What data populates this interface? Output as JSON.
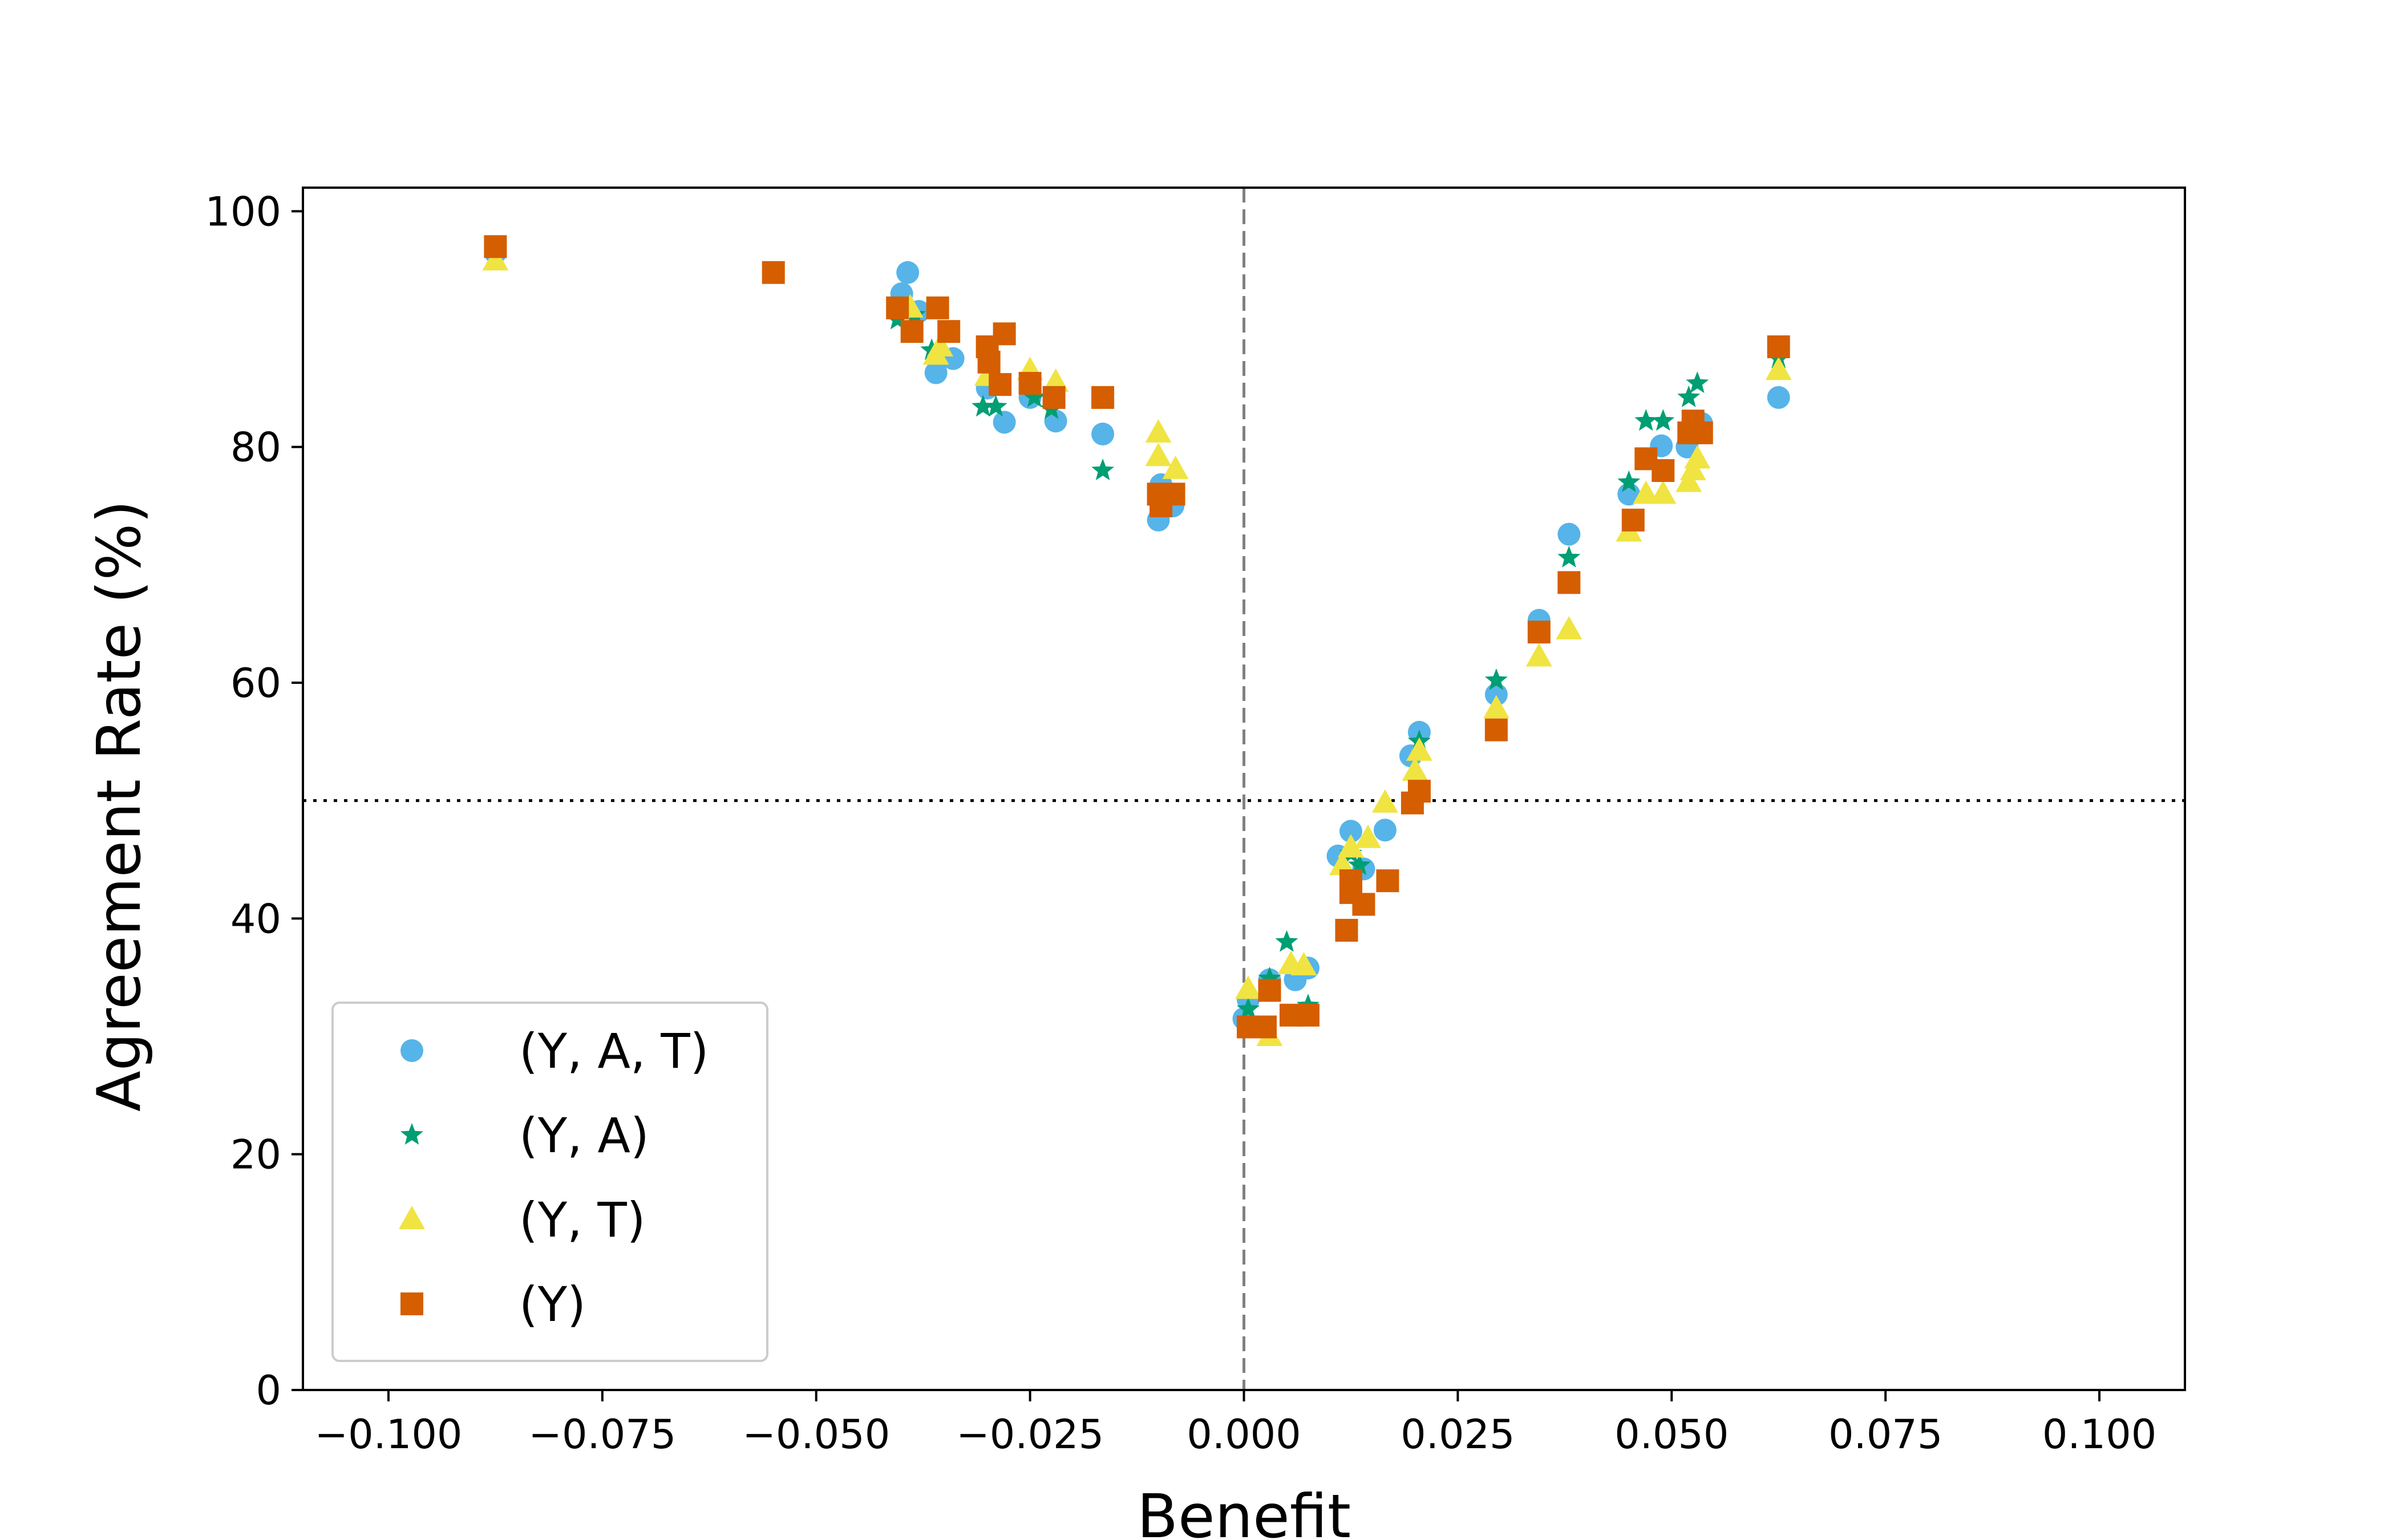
{
  "chart_data": {
    "type": "scatter",
    "title": "",
    "xlabel": "Benefit",
    "ylabel": "Agreement Rate (%)",
    "xlim": [
      -0.11,
      0.11
    ],
    "ylim": [
      0,
      102
    ],
    "xticks": [
      -0.1,
      -0.075,
      -0.05,
      -0.025,
      0.0,
      0.025,
      0.05,
      0.075,
      0.1
    ],
    "xtick_labels": [
      "−0.100",
      "−0.075",
      "−0.050",
      "−0.025",
      "0.000",
      "0.025",
      "0.050",
      "0.075",
      "0.100"
    ],
    "yticks": [
      0,
      20,
      40,
      60,
      80,
      100
    ],
    "ytick_labels": [
      "0",
      "20",
      "40",
      "60",
      "80",
      "100"
    ],
    "reference_lines": [
      {
        "orientation": "vertical",
        "value": 0.0,
        "style": "dashed",
        "color": "#808080"
      },
      {
        "orientation": "horizontal",
        "value": 50,
        "style": "dotted",
        "color": "#000000"
      }
    ],
    "grid": false,
    "legend": "bottom-left",
    "series": [
      {
        "name": "(Y, A, T)",
        "marker": "circle",
        "color": "#56b4e9",
        "points": [
          [
            -0.0875,
            96.5
          ],
          [
            -0.04,
            93
          ],
          [
            -0.0393,
            94.8
          ],
          [
            -0.038,
            91.5
          ],
          [
            -0.036,
            86.3
          ],
          [
            -0.034,
            87.5
          ],
          [
            -0.03,
            85
          ],
          [
            -0.028,
            82.1
          ],
          [
            -0.025,
            84.2
          ],
          [
            -0.022,
            82.2
          ],
          [
            -0.0165,
            81.1
          ],
          [
            -0.01,
            73.8
          ],
          [
            -0.0097,
            76.8
          ],
          [
            -0.0083,
            75
          ],
          [
            0.0,
            31.5
          ],
          [
            0.0005,
            33.1
          ],
          [
            0.003,
            34.8
          ],
          [
            0.006,
            34.8
          ],
          [
            0.0075,
            35.8
          ],
          [
            0.011,
            45.3
          ],
          [
            0.0125,
            47.4
          ],
          [
            0.014,
            44.2
          ],
          [
            0.0165,
            47.5
          ],
          [
            0.0195,
            53.8
          ],
          [
            0.0205,
            55.8
          ],
          [
            0.0295,
            59
          ],
          [
            0.0345,
            65.3
          ],
          [
            0.038,
            72.6
          ],
          [
            0.045,
            76
          ],
          [
            0.0488,
            80.1
          ],
          [
            0.0518,
            80
          ],
          [
            0.0535,
            82
          ],
          [
            0.0625,
            84.2
          ]
        ]
      },
      {
        "name": "(Y, A)",
        "marker": "star",
        "color": "#009e73",
        "points": [
          [
            -0.0875,
            96.3
          ],
          [
            -0.0405,
            90.8
          ],
          [
            -0.0385,
            91.2
          ],
          [
            -0.0365,
            88.2
          ],
          [
            -0.0305,
            83.4
          ],
          [
            -0.029,
            83.4
          ],
          [
            -0.0245,
            84.2
          ],
          [
            -0.0225,
            83.2
          ],
          [
            -0.0165,
            78
          ],
          [
            -0.0095,
            75.8
          ],
          [
            0.0005,
            32.3
          ],
          [
            0.003,
            34.9
          ],
          [
            0.005,
            38
          ],
          [
            0.0075,
            32.6
          ],
          [
            0.0125,
            45.5
          ],
          [
            0.0135,
            44.5
          ],
          [
            0.0205,
            55
          ],
          [
            0.0295,
            60.2
          ],
          [
            0.038,
            70.6
          ],
          [
            0.045,
            77
          ],
          [
            0.047,
            82.2
          ],
          [
            0.049,
            82.2
          ],
          [
            0.052,
            84.2
          ],
          [
            0.053,
            85.4
          ],
          [
            0.0625,
            87.5
          ]
        ]
      },
      {
        "name": "(Y, T)",
        "marker": "triangle",
        "color": "#f0e442",
        "points": [
          [
            -0.0875,
            95.8
          ],
          [
            -0.039,
            91.8
          ],
          [
            -0.036,
            87.8
          ],
          [
            -0.0355,
            88.5
          ],
          [
            -0.03,
            86
          ],
          [
            -0.025,
            86.5
          ],
          [
            -0.022,
            85.5
          ],
          [
            -0.01,
            81.2
          ],
          [
            -0.01,
            79.2
          ],
          [
            -0.008,
            78.1
          ],
          [
            0.0005,
            34
          ],
          [
            0.003,
            30
          ],
          [
            0.0055,
            36.1
          ],
          [
            0.007,
            36
          ],
          [
            0.0115,
            44.5
          ],
          [
            0.0125,
            46
          ],
          [
            0.0145,
            46.8
          ],
          [
            0.0165,
            49.8
          ],
          [
            0.02,
            52.5
          ],
          [
            0.0205,
            54.2
          ],
          [
            0.0295,
            57.8
          ],
          [
            0.0345,
            62.2
          ],
          [
            0.038,
            64.5
          ],
          [
            0.045,
            72.8
          ],
          [
            0.047,
            76
          ],
          [
            0.049,
            76
          ],
          [
            0.052,
            77
          ],
          [
            0.0525,
            78
          ],
          [
            0.053,
            79
          ],
          [
            0.0625,
            86.5
          ]
        ]
      },
      {
        "name": "(Y)",
        "marker": "square",
        "color": "#d55e00",
        "points": [
          [
            -0.0875,
            97
          ],
          [
            -0.055,
            94.8
          ],
          [
            -0.0405,
            91.8
          ],
          [
            -0.0388,
            89.8
          ],
          [
            -0.0358,
            91.8
          ],
          [
            -0.0345,
            89.8
          ],
          [
            -0.03,
            88.5
          ],
          [
            -0.0298,
            87.2
          ],
          [
            -0.0285,
            85.3
          ],
          [
            -0.028,
            89.6
          ],
          [
            -0.025,
            85.4
          ],
          [
            -0.0222,
            84.2
          ],
          [
            -0.0165,
            84.2
          ],
          [
            -0.01,
            76
          ],
          [
            -0.0097,
            75
          ],
          [
            -0.0082,
            76
          ],
          [
            0.0005,
            30.8
          ],
          [
            0.0025,
            30.8
          ],
          [
            0.003,
            33.9
          ],
          [
            0.0055,
            31.8
          ],
          [
            0.0075,
            31.8
          ],
          [
            0.012,
            39
          ],
          [
            0.0125,
            43.2
          ],
          [
            0.0125,
            42.2
          ],
          [
            0.014,
            41.2
          ],
          [
            0.0168,
            43.2
          ],
          [
            0.0197,
            49.8
          ],
          [
            0.0205,
            50.8
          ],
          [
            0.0295,
            56
          ],
          [
            0.0345,
            64.3
          ],
          [
            0.038,
            68.5
          ],
          [
            0.0455,
            73.8
          ],
          [
            0.047,
            79
          ],
          [
            0.049,
            78
          ],
          [
            0.052,
            81.2
          ],
          [
            0.0525,
            82.2
          ],
          [
            0.0535,
            81.2
          ],
          [
            0.0625,
            88.5
          ]
        ]
      }
    ]
  }
}
